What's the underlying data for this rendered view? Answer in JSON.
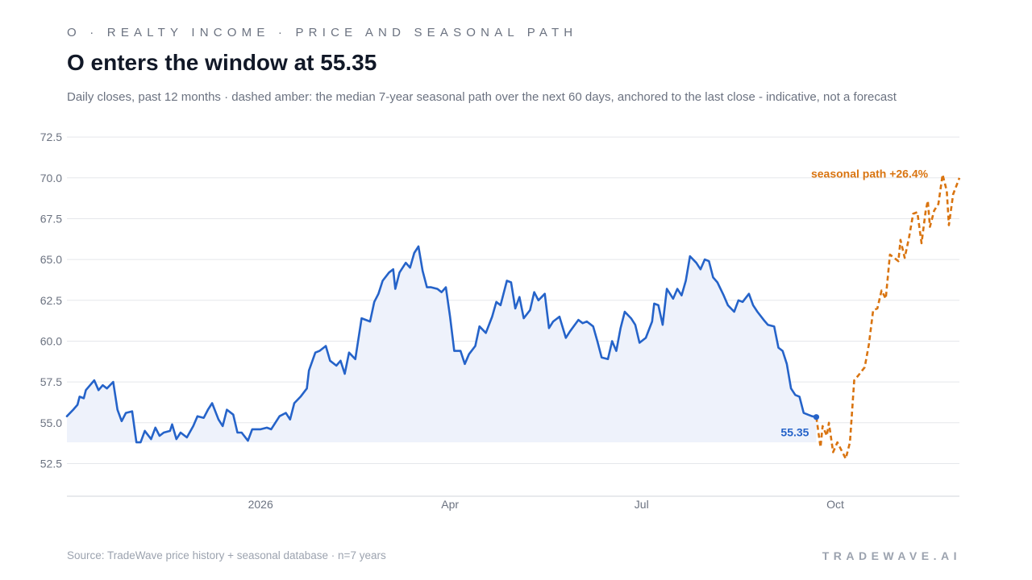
{
  "header": {
    "kicker": "O · REALTY INCOME · PRICE AND SEASONAL PATH",
    "title": "O enters the window at 55.35",
    "subtitle": "Daily closes, past 12 months · dashed amber: the median 7-year seasonal path over the next 60 days, anchored to the last close - indicative, not a forecast"
  },
  "footer": {
    "source": "Source: TradeWave price history + seasonal database · n=7 years",
    "brand": "TRADEWAVE.AI"
  },
  "colors": {
    "price_line": "#2563c9",
    "price_fill": "#eef2fb",
    "seasonal_line": "#d97410",
    "grid": "#e5e7eb",
    "axis": "#d1d5db",
    "tick_text": "#6b7280"
  },
  "chart_data": {
    "type": "line",
    "ylim": [
      50.5,
      73.0
    ],
    "yticks": [
      52.5,
      55.0,
      57.5,
      60.0,
      62.5,
      65.0,
      67.5,
      70.0,
      72.5
    ],
    "ytick_labels": [
      "52.5",
      "55.0",
      "57.5",
      "60.0",
      "62.5",
      "65.0",
      "67.5",
      "70.0",
      "72.5"
    ],
    "xlim": [
      "2025-10-01",
      "2026-11-29"
    ],
    "xticks": [
      {
        "date": "2026-01-01",
        "label": "2026"
      },
      {
        "date": "2026-04-01",
        "label": "Apr"
      },
      {
        "date": "2026-07-01",
        "label": "Jul"
      },
      {
        "date": "2026-10-01",
        "label": "Oct"
      }
    ],
    "grid": true,
    "legend": "none",
    "series": [
      {
        "kind": "price",
        "points": [
          [
            "2025-10-01",
            55.4
          ],
          [
            "2025-10-04",
            55.8
          ],
          [
            "2025-10-06",
            56.1
          ],
          [
            "2025-10-07",
            56.6
          ],
          [
            "2025-10-09",
            56.5
          ],
          [
            "2025-10-10",
            57.0
          ],
          [
            "2025-10-12",
            57.3
          ],
          [
            "2025-10-14",
            57.6
          ],
          [
            "2025-10-16",
            57.0
          ],
          [
            "2025-10-18",
            57.3
          ],
          [
            "2025-10-20",
            57.1
          ],
          [
            "2025-10-23",
            57.5
          ],
          [
            "2025-10-25",
            55.8
          ],
          [
            "2025-10-27",
            55.1
          ],
          [
            "2025-10-29",
            55.6
          ],
          [
            "2025-11-01",
            55.7
          ],
          [
            "2025-11-03",
            53.8
          ],
          [
            "2025-11-05",
            53.8
          ],
          [
            "2025-11-07",
            54.5
          ],
          [
            "2025-11-10",
            54.0
          ],
          [
            "2025-11-12",
            54.7
          ],
          [
            "2025-11-14",
            54.2
          ],
          [
            "2025-11-16",
            54.4
          ],
          [
            "2025-11-19",
            54.5
          ],
          [
            "2025-11-20",
            54.9
          ],
          [
            "2025-11-22",
            54.0
          ],
          [
            "2025-11-24",
            54.4
          ],
          [
            "2025-11-27",
            54.1
          ],
          [
            "2025-11-30",
            54.8
          ],
          [
            "2025-12-02",
            55.4
          ],
          [
            "2025-12-05",
            55.3
          ],
          [
            "2025-12-07",
            55.8
          ],
          [
            "2025-12-09",
            56.2
          ],
          [
            "2025-12-12",
            55.2
          ],
          [
            "2025-12-14",
            54.8
          ],
          [
            "2025-12-16",
            55.8
          ],
          [
            "2025-12-19",
            55.5
          ],
          [
            "2025-12-21",
            54.4
          ],
          [
            "2025-12-23",
            54.4
          ],
          [
            "2025-12-26",
            53.9
          ],
          [
            "2025-12-28",
            54.6
          ],
          [
            "2026-01-01",
            54.6
          ],
          [
            "2026-01-04",
            54.7
          ],
          [
            "2026-01-06",
            54.6
          ],
          [
            "2026-01-08",
            55.0
          ],
          [
            "2026-01-10",
            55.4
          ],
          [
            "2026-01-13",
            55.6
          ],
          [
            "2026-01-15",
            55.2
          ],
          [
            "2026-01-17",
            56.2
          ],
          [
            "2026-01-20",
            56.6
          ],
          [
            "2026-01-23",
            57.1
          ],
          [
            "2026-01-24",
            58.2
          ],
          [
            "2026-01-27",
            59.3
          ],
          [
            "2026-01-29",
            59.4
          ],
          [
            "2026-02-01",
            59.7
          ],
          [
            "2026-02-03",
            58.8
          ],
          [
            "2026-02-06",
            58.5
          ],
          [
            "2026-02-08",
            58.8
          ],
          [
            "2026-02-10",
            58.0
          ],
          [
            "2026-02-12",
            59.3
          ],
          [
            "2026-02-15",
            58.9
          ],
          [
            "2026-02-18",
            61.4
          ],
          [
            "2026-02-20",
            61.3
          ],
          [
            "2026-02-22",
            61.2
          ],
          [
            "2026-02-24",
            62.4
          ],
          [
            "2026-02-26",
            62.9
          ],
          [
            "2026-02-28",
            63.7
          ],
          [
            "2026-03-03",
            64.2
          ],
          [
            "2026-03-05",
            64.4
          ],
          [
            "2026-03-06",
            63.2
          ],
          [
            "2026-03-08",
            64.2
          ],
          [
            "2026-03-11",
            64.8
          ],
          [
            "2026-03-13",
            64.5
          ],
          [
            "2026-03-15",
            65.4
          ],
          [
            "2026-03-17",
            65.8
          ],
          [
            "2026-03-19",
            64.3
          ],
          [
            "2026-03-21",
            63.3
          ],
          [
            "2026-03-23",
            63.3
          ],
          [
            "2026-03-26",
            63.2
          ],
          [
            "2026-03-28",
            63.0
          ],
          [
            "2026-03-30",
            63.3
          ],
          [
            "2026-04-01",
            61.5
          ],
          [
            "2026-04-03",
            59.4
          ],
          [
            "2026-04-06",
            59.4
          ],
          [
            "2026-04-08",
            58.6
          ],
          [
            "2026-04-10",
            59.2
          ],
          [
            "2026-04-13",
            59.7
          ],
          [
            "2026-04-15",
            60.9
          ],
          [
            "2026-04-18",
            60.5
          ],
          [
            "2026-04-21",
            61.5
          ],
          [
            "2026-04-23",
            62.4
          ],
          [
            "2026-04-25",
            62.2
          ],
          [
            "2026-04-28",
            63.7
          ],
          [
            "2026-04-30",
            63.6
          ],
          [
            "2026-05-02",
            62.0
          ],
          [
            "2026-05-04",
            62.7
          ],
          [
            "2026-05-06",
            61.4
          ],
          [
            "2026-05-09",
            61.9
          ],
          [
            "2026-05-11",
            63.0
          ],
          [
            "2026-05-13",
            62.5
          ],
          [
            "2026-05-16",
            62.9
          ],
          [
            "2026-05-18",
            60.8
          ],
          [
            "2026-05-20",
            61.2
          ],
          [
            "2026-05-23",
            61.5
          ],
          [
            "2026-05-26",
            60.2
          ],
          [
            "2026-05-28",
            60.6
          ],
          [
            "2026-06-01",
            61.3
          ],
          [
            "2026-06-03",
            61.1
          ],
          [
            "2026-06-05",
            61.2
          ],
          [
            "2026-06-08",
            60.9
          ],
          [
            "2026-06-10",
            60.0
          ],
          [
            "2026-06-12",
            59.0
          ],
          [
            "2026-06-15",
            58.9
          ],
          [
            "2026-06-17",
            60.0
          ],
          [
            "2026-06-19",
            59.4
          ],
          [
            "2026-06-21",
            60.8
          ],
          [
            "2026-06-23",
            61.8
          ],
          [
            "2026-06-26",
            61.4
          ],
          [
            "2026-06-28",
            61.0
          ],
          [
            "2026-06-30",
            59.9
          ],
          [
            "2026-07-03",
            60.2
          ],
          [
            "2026-07-06",
            61.2
          ],
          [
            "2026-07-07",
            62.3
          ],
          [
            "2026-07-09",
            62.2
          ],
          [
            "2026-07-11",
            61.0
          ],
          [
            "2026-07-13",
            63.2
          ],
          [
            "2026-07-16",
            62.6
          ],
          [
            "2026-07-18",
            63.2
          ],
          [
            "2026-07-20",
            62.8
          ],
          [
            "2026-07-22",
            63.7
          ],
          [
            "2026-07-24",
            65.2
          ],
          [
            "2026-07-27",
            64.8
          ],
          [
            "2026-07-29",
            64.4
          ],
          [
            "2026-07-31",
            65.0
          ],
          [
            "2026-08-02",
            64.9
          ],
          [
            "2026-08-04",
            63.9
          ],
          [
            "2026-08-06",
            63.6
          ],
          [
            "2026-08-09",
            62.8
          ],
          [
            "2026-08-11",
            62.2
          ],
          [
            "2026-08-14",
            61.8
          ],
          [
            "2026-08-16",
            62.5
          ],
          [
            "2026-08-18",
            62.4
          ],
          [
            "2026-08-21",
            62.9
          ],
          [
            "2026-08-23",
            62.2
          ],
          [
            "2026-08-25",
            61.8
          ],
          [
            "2026-08-28",
            61.3
          ],
          [
            "2026-08-30",
            61.0
          ],
          [
            "2026-09-02",
            60.9
          ],
          [
            "2026-09-04",
            59.6
          ],
          [
            "2026-09-06",
            59.4
          ],
          [
            "2026-09-08",
            58.6
          ],
          [
            "2026-09-10",
            57.1
          ],
          [
            "2026-09-12",
            56.7
          ],
          [
            "2026-09-14",
            56.6
          ],
          [
            "2026-09-16",
            55.6
          ],
          [
            "2026-09-18",
            55.5
          ],
          [
            "2026-09-20",
            55.4
          ],
          [
            "2026-09-22",
            55.35
          ]
        ]
      },
      {
        "kind": "seasonal",
        "points": [
          [
            "2026-09-22",
            55.35
          ],
          [
            "2026-09-24",
            53.5
          ],
          [
            "2026-09-25",
            54.8
          ],
          [
            "2026-09-27",
            54.2
          ],
          [
            "2026-09-28",
            55.0
          ],
          [
            "2026-09-30",
            53.2
          ],
          [
            "2026-10-02",
            53.8
          ],
          [
            "2026-10-04",
            53.3
          ],
          [
            "2026-10-06",
            52.8
          ],
          [
            "2026-10-08",
            53.8
          ],
          [
            "2026-10-10",
            57.6
          ],
          [
            "2026-10-12",
            57.9
          ],
          [
            "2026-10-15",
            58.4
          ],
          [
            "2026-10-17",
            59.8
          ],
          [
            "2026-10-19",
            61.9
          ],
          [
            "2026-10-21",
            62.0
          ],
          [
            "2026-10-23",
            63.1
          ],
          [
            "2026-10-25",
            62.6
          ],
          [
            "2026-10-27",
            65.3
          ],
          [
            "2026-10-29",
            65.1
          ],
          [
            "2026-10-31",
            64.9
          ],
          [
            "2026-11-01",
            66.2
          ],
          [
            "2026-11-03",
            65.1
          ],
          [
            "2026-11-05",
            66.3
          ],
          [
            "2026-11-07",
            67.8
          ],
          [
            "2026-11-09",
            67.9
          ],
          [
            "2026-11-11",
            66.0
          ],
          [
            "2026-11-13",
            68.0
          ],
          [
            "2026-11-14",
            68.6
          ],
          [
            "2026-11-15",
            67.0
          ],
          [
            "2026-11-17",
            68.0
          ],
          [
            "2026-11-19",
            68.4
          ],
          [
            "2026-11-21",
            70.2
          ],
          [
            "2026-11-23",
            69.2
          ],
          [
            "2026-11-24",
            67.1
          ],
          [
            "2026-11-26",
            69.0
          ],
          [
            "2026-11-29",
            70.0
          ]
        ]
      }
    ],
    "annotations": {
      "last_close_label": "55.35",
      "seasonal_label": "seasonal path +26.4%"
    }
  }
}
